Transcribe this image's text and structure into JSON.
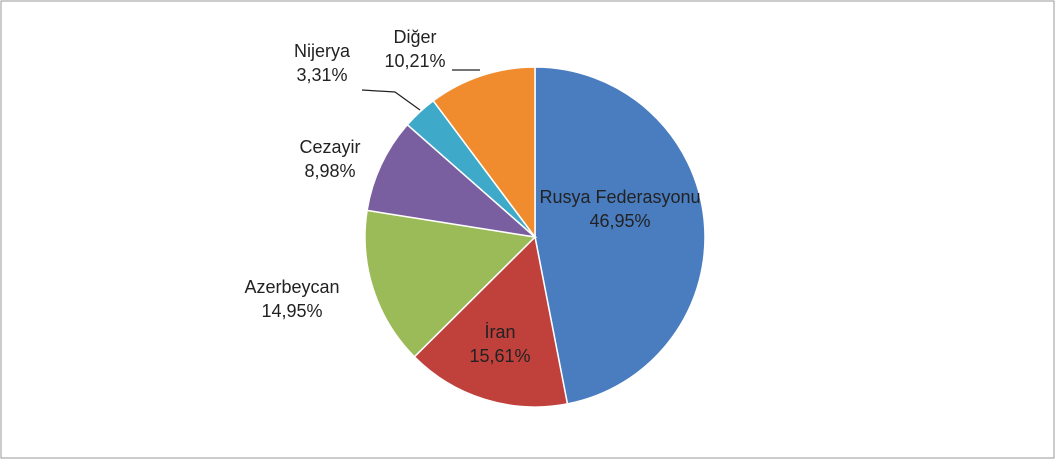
{
  "chart_data": {
    "type": "pie",
    "categories": [
      "Rusya Federasyonu",
      "İran",
      "Azerbeycan",
      "Cezayir",
      "Nijerya",
      "Diğer"
    ],
    "values": [
      46.95,
      15.61,
      14.95,
      8.98,
      3.31,
      10.21
    ],
    "value_labels": [
      "46,95%",
      "15,61%",
      "14,95%",
      "8,98%",
      "3,31%",
      "10,21%"
    ],
    "colors": [
      "#4a7dc0",
      "#c0403c",
      "#9bbb59",
      "#7a5fa0",
      "#3fa9c9",
      "#f08c2e"
    ]
  }
}
